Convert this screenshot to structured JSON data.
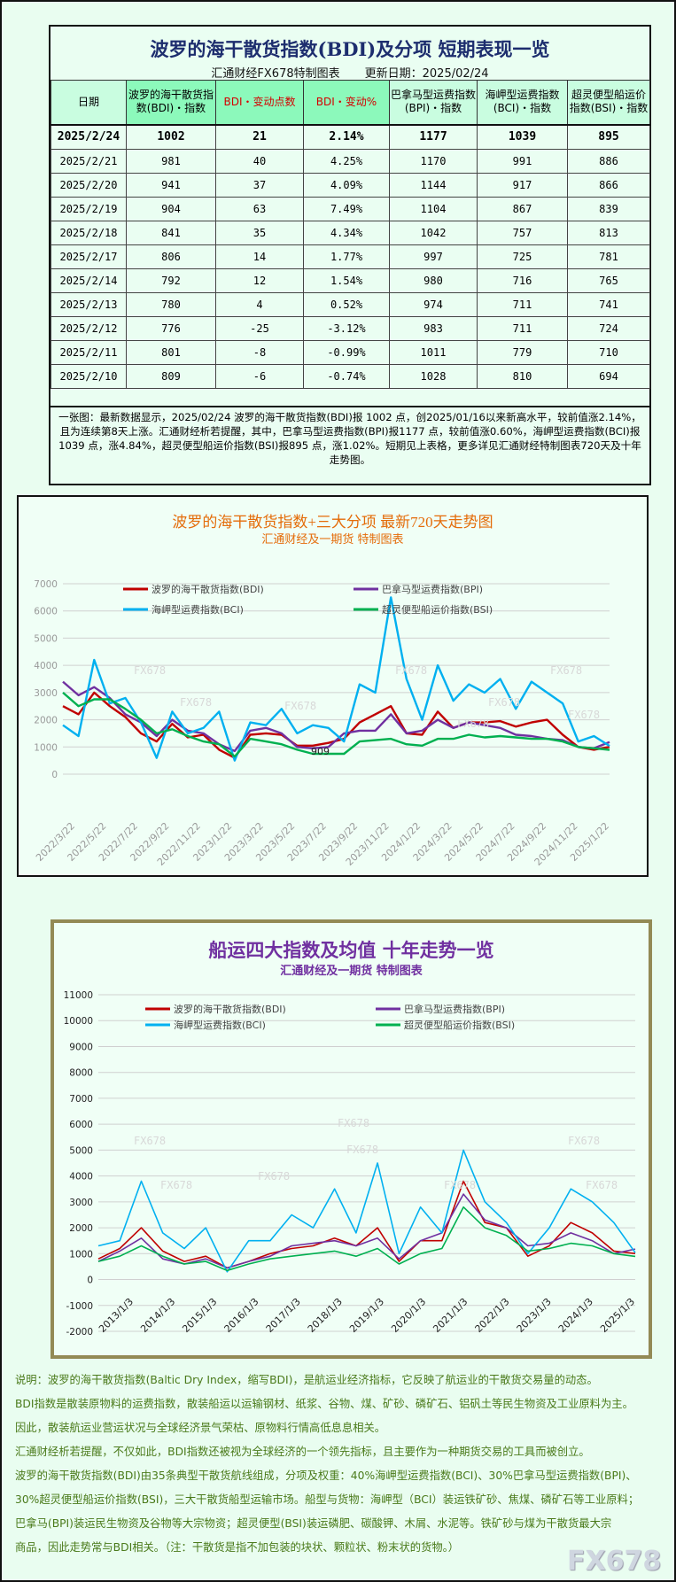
{
  "table": {
    "title": "波罗的海干散货指数(BDI)及分项 短期表现一览",
    "source": "汇通财经FX678特制图表",
    "update": "更新日期：2025/02/24",
    "headers": [
      "日期",
      "波罗的海干散货指数(BDI)・指数",
      "BDI・变动点数",
      "BDI・变动%",
      "巴拿马型运费指数(BPI)・指数",
      "海岬型运费指数(BCI)・指数",
      "超灵便型船运价指数(BSI)・指数"
    ],
    "rows": [
      [
        "2025/2/24",
        "1002",
        "21",
        "2.14%",
        "1177",
        "1039",
        "895"
      ],
      [
        "2025/2/21",
        "981",
        "40",
        "4.25%",
        "1170",
        "991",
        "886"
      ],
      [
        "2025/2/20",
        "941",
        "37",
        "4.09%",
        "1144",
        "917",
        "866"
      ],
      [
        "2025/2/19",
        "904",
        "63",
        "7.49%",
        "1104",
        "867",
        "839"
      ],
      [
        "2025/2/18",
        "841",
        "35",
        "4.34%",
        "1042",
        "757",
        "813"
      ],
      [
        "2025/2/17",
        "806",
        "14",
        "1.77%",
        "997",
        "725",
        "781"
      ],
      [
        "2025/2/14",
        "792",
        "12",
        "1.54%",
        "980",
        "716",
        "765"
      ],
      [
        "2025/2/13",
        "780",
        "4",
        "0.52%",
        "974",
        "711",
        "741"
      ],
      [
        "2025/2/12",
        "776",
        "-25",
        "-3.12%",
        "983",
        "711",
        "724"
      ],
      [
        "2025/2/11",
        "801",
        "-8",
        "-0.99%",
        "1011",
        "779",
        "710"
      ],
      [
        "2025/2/10",
        "809",
        "-6",
        "-0.74%",
        "1028",
        "810",
        "694"
      ]
    ],
    "note": "一张图：最新数据显示，2025/02/24 波罗的海干散货指数(BDI)报 1002 点，创2025/01/16以来新高水平，较前值涨2.14%，且为连续第8天上涨。汇通财经析若提醒，其中，巴拿马型运费指数(BPI)报1177 点，较前值涨0.60%，海岬型运费指数(BCI)报1039 点，涨4.84%，超灵便型船运价指数(BSI)报895 点，涨1.02%。短期见上表格，更多详见汇通财经特制图表720天及十年走势图。"
  },
  "colors": {
    "BDI": "#c00000",
    "BPI": "#7030a0",
    "BCI": "#00b0f0",
    "BSI": "#00b050",
    "title1": "#e46c0a",
    "title2": "#7030a0"
  },
  "watermark": "FX678",
  "chart_data": [
    {
      "type": "line",
      "title": "波罗的海干散货指数+三大分项  最新720天走势图",
      "subtitle": "汇通财经及一期货  特制图表",
      "ylim": [
        0,
        7000
      ],
      "yticks": [
        "0",
        "1000",
        "2000",
        "3000",
        "4000",
        "5000",
        "6000",
        "7000"
      ],
      "xticks": [
        "2022/3/22",
        "2022/5/22",
        "2022/7/22",
        "2022/9/22",
        "2022/11/22",
        "2023/1/22",
        "2023/3/22",
        "2023/5/22",
        "2023/7/22",
        "2023/9/22",
        "2023/11/22",
        "2024/1/22",
        "2024/3/22",
        "2024/5/22",
        "2024/7/22",
        "2024/9/22",
        "2024/11/22",
        "2025/1/22"
      ],
      "legend_position": "top",
      "grid": true,
      "annotation": "909",
      "x": [
        "2022/3",
        "2022/4",
        "2022/5",
        "2022/6",
        "2022/7",
        "2022/8",
        "2022/9",
        "2022/10",
        "2022/11",
        "2022/12",
        "2023/1",
        "2023/2",
        "2023/3",
        "2023/4",
        "2023/5",
        "2023/6",
        "2023/7",
        "2023/8",
        "2023/9",
        "2023/10",
        "2023/11",
        "2023/12",
        "2024/1",
        "2024/2",
        "2024/3",
        "2024/4",
        "2024/5",
        "2024/6",
        "2024/7",
        "2024/8",
        "2024/9",
        "2024/10",
        "2024/11",
        "2024/12",
        "2025/1",
        "2025/2"
      ],
      "series": [
        {
          "name": "波罗的海干散货指数(BDI)",
          "key": "BDI",
          "values": [
            2500,
            2200,
            3000,
            2500,
            2100,
            1500,
            1200,
            1850,
            1350,
            1450,
            900,
            600,
            1450,
            1500,
            1450,
            1050,
            1050,
            1150,
            1300,
            1900,
            2200,
            2500,
            1500,
            1450,
            2300,
            1700,
            1900,
            1900,
            1950,
            1750,
            1900,
            2000,
            1450,
            1000,
            900,
            1002
          ]
        },
        {
          "name": "巴拿马型运费指数(BPI)",
          "key": "BPI",
          "values": [
            3400,
            2900,
            3200,
            2800,
            2200,
            1900,
            1400,
            2000,
            1600,
            1500,
            1100,
            850,
            1600,
            1700,
            1500,
            1000,
            950,
            1000,
            1500,
            1600,
            1600,
            2200,
            1500,
            1600,
            2000,
            1700,
            1900,
            1800,
            1700,
            1450,
            1400,
            1300,
            1250,
            1000,
            950,
            1177
          ]
        },
        {
          "name": "海岬型运费指数(BCI)",
          "key": "BCI",
          "values": [
            1800,
            1400,
            4200,
            2600,
            2800,
            1900,
            600,
            2300,
            1500,
            1700,
            2300,
            500,
            1900,
            1800,
            2400,
            1500,
            1800,
            1700,
            1200,
            3300,
            3000,
            6500,
            3500,
            2000,
            4000,
            2700,
            3300,
            3000,
            3500,
            2400,
            3400,
            3000,
            2600,
            1200,
            1400,
            1039
          ]
        },
        {
          "name": "超灵便型船运价指数(BSI)",
          "key": "BSI",
          "values": [
            3000,
            2500,
            2750,
            2750,
            2400,
            2000,
            1500,
            1650,
            1400,
            1200,
            1100,
            650,
            1300,
            1200,
            1100,
            900,
            750,
            750,
            750,
            1200,
            1250,
            1300,
            1100,
            1050,
            1300,
            1300,
            1450,
            1350,
            1400,
            1350,
            1300,
            1300,
            1200,
            1000,
            950,
            895
          ]
        }
      ]
    },
    {
      "type": "line",
      "title": "船运四大指数及均值 十年走势一览",
      "subtitle": "汇通财经及一期货 特制图表",
      "ylim": [
        -2000,
        11000
      ],
      "yticks": [
        "-2000",
        "-1000",
        "0",
        "1000",
        "2000",
        "3000",
        "4000",
        "5000",
        "6000",
        "7000",
        "8000",
        "9000",
        "10000",
        "11000"
      ],
      "xticks": [
        "2013/1/3",
        "2014/1/3",
        "2015/1/3",
        "2016/1/3",
        "2017/1/3",
        "2018/1/3",
        "2019/1/3",
        "2020/1/3",
        "2021/1/3",
        "2022/1/3",
        "2023/1/3",
        "2024/1/3",
        "2025/1/3"
      ],
      "legend_position": "top",
      "grid": true,
      "x": [
        "2013/1",
        "2013/7",
        "2014/1",
        "2014/7",
        "2015/1",
        "2015/7",
        "2016/1",
        "2016/7",
        "2017/1",
        "2017/7",
        "2018/1",
        "2018/7",
        "2019/1",
        "2019/7",
        "2020/1",
        "2020/7",
        "2021/1",
        "2021/7",
        "2022/1",
        "2022/7",
        "2023/1",
        "2023/7",
        "2024/1",
        "2024/7",
        "2025/1",
        "2025/2"
      ],
      "series": [
        {
          "name": "波罗的海干散货指数(BDI)",
          "key": "BDI",
          "values": [
            800,
            1200,
            2000,
            1100,
            700,
            900,
            450,
            700,
            1000,
            1200,
            1300,
            1600,
            1300,
            2000,
            700,
            1500,
            1500,
            3800,
            2200,
            2000,
            900,
            1300,
            2200,
            1800,
            1100,
            1002
          ]
        },
        {
          "name": "巴拿马型运费指数(BPI)",
          "key": "BPI",
          "values": [
            700,
            1100,
            1600,
            800,
            600,
            800,
            450,
            700,
            900,
            1300,
            1400,
            1500,
            1300,
            1600,
            800,
            1500,
            1800,
            3300,
            2300,
            2000,
            1300,
            1400,
            1800,
            1500,
            1000,
            1177
          ]
        },
        {
          "name": "海岬型运费指数(BCI)",
          "key": "BCI",
          "values": [
            1300,
            1500,
            3800,
            1800,
            1200,
            2000,
            300,
            1500,
            1500,
            2500,
            2000,
            3500,
            1800,
            4500,
            1000,
            2800,
            1800,
            5000,
            3000,
            2200,
            1000,
            2000,
            3500,
            3000,
            2200,
            1039
          ]
        },
        {
          "name": "超灵便型船运价指数(BSI)",
          "key": "BSI",
          "values": [
            700,
            900,
            1300,
            900,
            600,
            700,
            350,
            600,
            800,
            900,
            1000,
            1100,
            900,
            1200,
            600,
            1000,
            1200,
            2800,
            2000,
            1700,
            1100,
            1200,
            1400,
            1300,
            1000,
            895
          ]
        }
      ]
    }
  ],
  "description": [
    "说明：波罗的海干散货指数(Baltic Dry Index，缩写BDI)，是航运业经济指标，它反映了航运业的干散货交易量的动态。",
    "BDI指数是散装原物料的运费指数，散装船运以运输钢材、纸浆、谷物、煤、矿砂、磷矿石、铝矾土等民生物资及工业原料为主。",
    "因此，散装航运业营运状况与全球经济景气荣枯、原物料行情高低息息相关。",
    "汇通财经析若提醒，不仅如此，BDI指数还被视为全球经济的一个领先指标，且主要作为一种期货交易的工具而被创立。",
    "波罗的海干散货指数(BDI)由35条典型干散货航线组成，分项及权重：40%海岬型运费指数(BCI)、30%巴拿马型运费指数(BPI)、",
    "30%超灵便型船运价指数(BSI)，三大干散货船型运输市场。船型与货物：海岬型（BCI）装运铁矿砂、焦煤、磷矿石等工业原料；",
    "巴拿马(BPI)装运民生物资及谷物等大宗物资；超灵便型(BSI)装运磷肥、碳酸钾、木屑、水泥等。铁矿砂与煤为干散货最大宗",
    "商品，因此走势常与BDI相关。（注：干散货是指不加包装的块状、颗粒状、粉末状的货物。）"
  ]
}
